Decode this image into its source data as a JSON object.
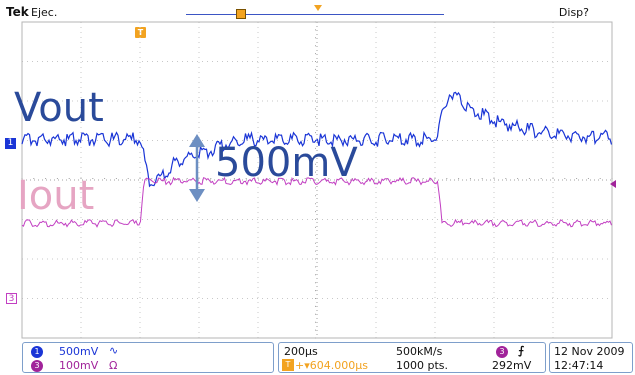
{
  "header": {
    "brand": "Tek",
    "run_state": "Ejec.",
    "status_right": "Disp?"
  },
  "trigger_marker": "T",
  "channels": {
    "ch1": {
      "marker": "1",
      "color": "#1a35d6",
      "scale": "500mV",
      "coupling_symbol": "∿"
    },
    "ch3": {
      "marker": "3",
      "color": "#a1239a",
      "scale": "100mV",
      "coupling_symbol": "Ω"
    }
  },
  "annotations": {
    "vout": "Vout",
    "iout": "Iout",
    "delta": "500mV"
  },
  "timebase": {
    "time_per_div": "200µs",
    "sample_rate": "500kM/s",
    "trigger_position": "+▾604.000µs",
    "record_length": "1000 pts."
  },
  "trigger": {
    "source": "3",
    "slope_symbol": "⨍",
    "level": "292mV"
  },
  "clock": {
    "date": "12 Nov 2009",
    "time": "12:47:14"
  }
}
